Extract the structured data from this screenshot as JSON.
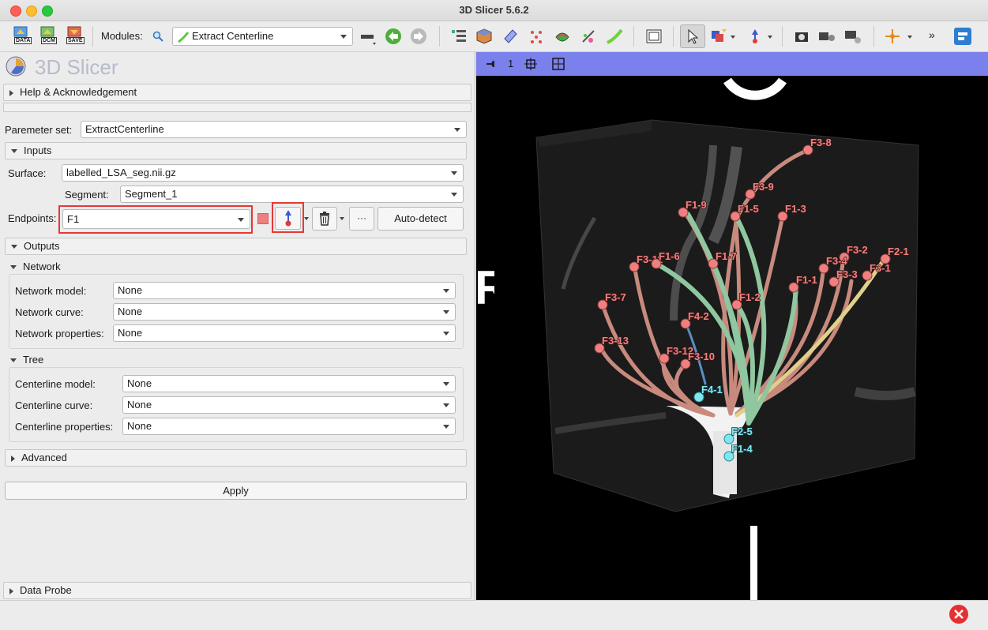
{
  "window": {
    "title": "3D Slicer 5.6.2"
  },
  "toolbar": {
    "data_label": "DATA",
    "dcm_label": "DCM",
    "save_label": "SAVE",
    "modules_label": "Modules:",
    "module_selected": "Extract Centerline",
    "more_label": "»"
  },
  "logo": {
    "title": "3D Slicer"
  },
  "panel": {
    "help_section": "Help & Acknowledgement",
    "parameter_set_label": "Paremeter set:",
    "parameter_set_value": "ExtractCenterline",
    "inputs_section": "Inputs",
    "surface_label": "Surface:",
    "surface_value": "labelled_LSA_seg.nii.gz",
    "segment_label": "Segment:",
    "segment_value": "Segment_1",
    "endpoints_label": "Endpoints:",
    "endpoints_value": "F1",
    "more_button": "···",
    "autodetect_button": "Auto-detect",
    "outputs_section": "Outputs",
    "network_group": "Network",
    "network_model_label": "Network model:",
    "network_model_value": "None",
    "network_curve_label": "Network curve:",
    "network_curve_value": "None",
    "network_properties_label": "Network properties:",
    "network_properties_value": "None",
    "tree_group": "Tree",
    "centerline_model_label": "Centerline model:",
    "centerline_model_value": "None",
    "centerline_curve_label": "Centerline curve:",
    "centerline_curve_value": "None",
    "centerline_properties_label": "Centerline properties:",
    "centerline_properties_value": "None",
    "advanced_section": "Advanced",
    "apply_button": "Apply",
    "data_probe_section": "Data Probe"
  },
  "viewer": {
    "view_number": "1",
    "orientation_left": "R",
    "endpoint_labels": [
      "F3-8",
      "F3-9",
      "F1-9",
      "F1-5",
      "F1-3",
      "F3-2",
      "F2-1",
      "F3-4",
      "F3-1",
      "F3-3",
      "F3-11",
      "F1-6",
      "F1-7",
      "F1-1",
      "F1-2",
      "F3-7",
      "F4-2",
      "F3-13",
      "F3-12",
      "F3-10",
      "F4-1",
      "F2-5",
      "F1-4"
    ]
  },
  "colors": {
    "viewbar": "#7a80ec",
    "highlight": "#e53935",
    "endpoint_red": "#f08080",
    "endpoint_cyan": "#7fe6ee",
    "vessel_green": "#8fc7a0",
    "vessel_red": "#c98a7e",
    "vessel_yellow": "#e0d08a"
  },
  "icons": [
    "data-icon",
    "dcm-icon",
    "save-icon",
    "search-icon",
    "back-icon",
    "forward-icon",
    "pointer-icon",
    "place-point-icon",
    "delete-icon",
    "close-error-icon"
  ]
}
